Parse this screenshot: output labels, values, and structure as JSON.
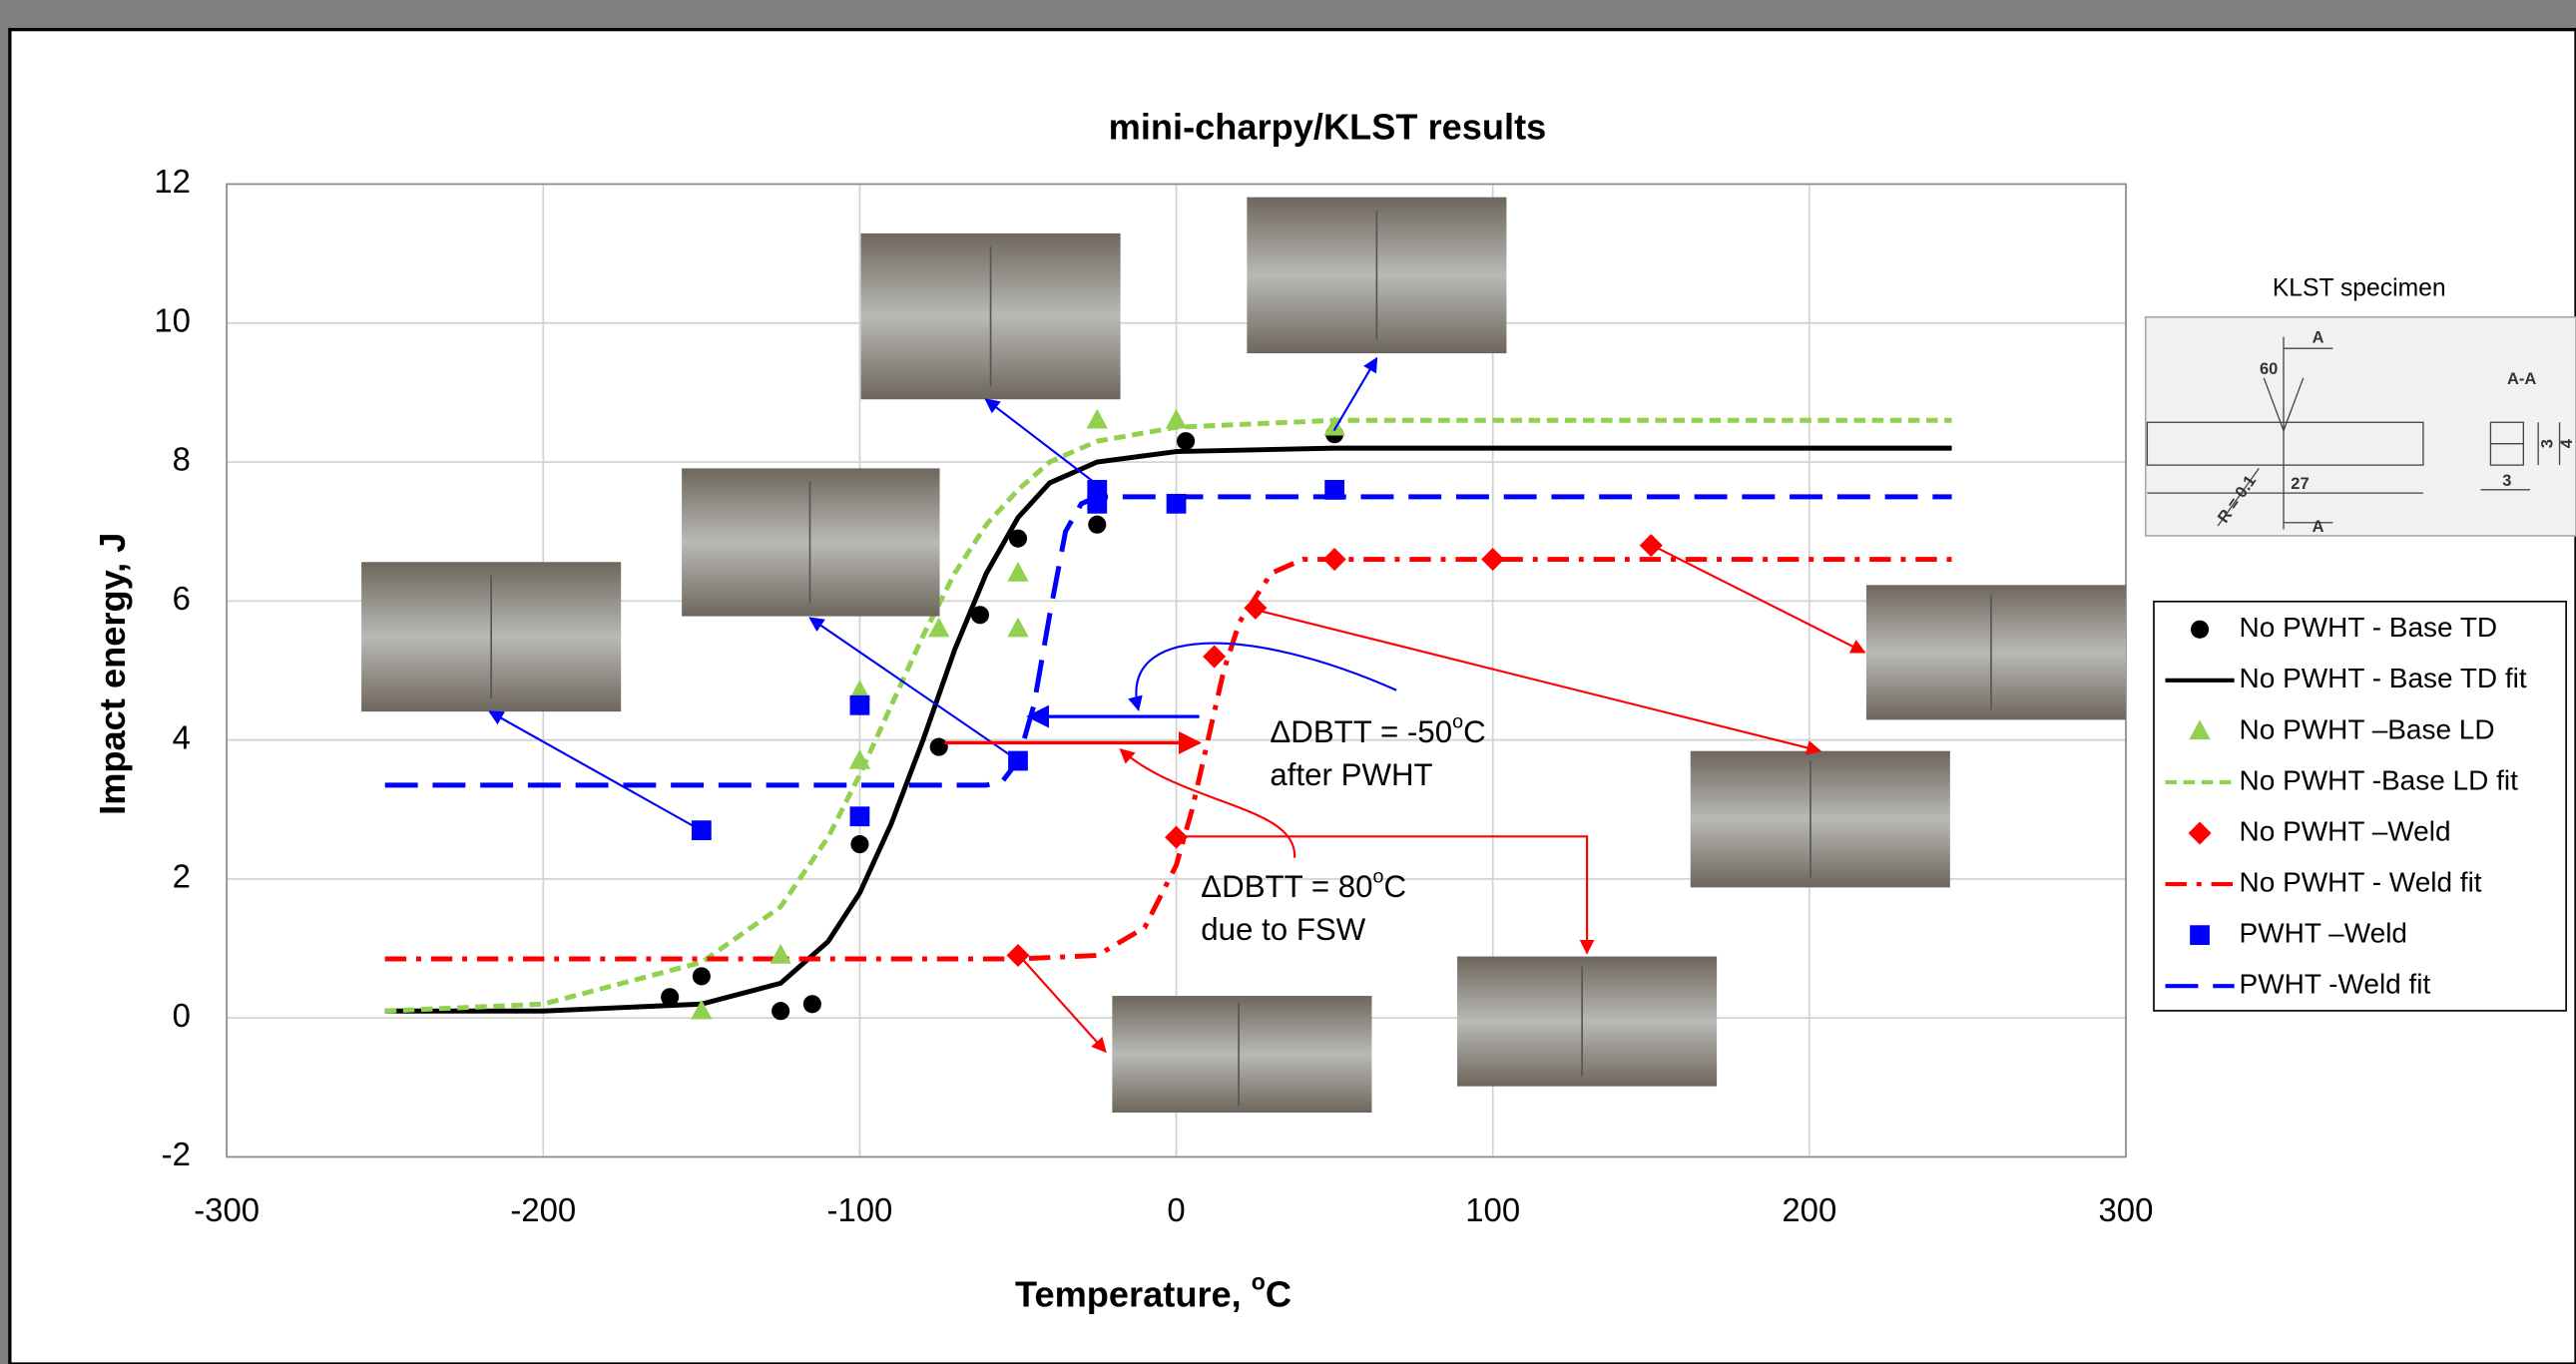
{
  "chart_data": {
    "type": "scatter",
    "title": "mini-charpy/KLST results",
    "xlabel": [
      "Temperature, ",
      "o",
      "C"
    ],
    "ylabel": "Impact energy, J",
    "xlim": [
      -300,
      300
    ],
    "xticks": [
      -300,
      -200,
      -100,
      0,
      100,
      200,
      300
    ],
    "ylim": [
      -2,
      12
    ],
    "yticks": [
      -2,
      0,
      2,
      4,
      6,
      8,
      10,
      12
    ],
    "grid": true,
    "legend": "right",
    "series": [
      {
        "name": "No PWHT - Base TD",
        "type": "scatter",
        "marker": "circle",
        "color": "#000000",
        "x": [
          -160,
          -150,
          -125,
          -115,
          -100,
          -75,
          -62,
          -50,
          -25,
          3,
          50
        ],
        "values": [
          0.3,
          0.6,
          0.1,
          0.2,
          2.5,
          3.9,
          5.8,
          6.9,
          7.1,
          8.3,
          8.4
        ]
      },
      {
        "name": "No PWHT - Base TD fit",
        "type": "line",
        "dash": "solid",
        "color": "#000000",
        "x": [
          -250,
          -200,
          -150,
          -125,
          -110,
          -100,
          -90,
          -80,
          -70,
          -60,
          -50,
          -40,
          -25,
          0,
          50,
          245
        ],
        "values": [
          0.1,
          0.1,
          0.2,
          0.5,
          1.1,
          1.8,
          2.8,
          4.0,
          5.3,
          6.4,
          7.2,
          7.7,
          8.0,
          8.15,
          8.2,
          8.2
        ]
      },
      {
        "name": "No PWHT –Base LD",
        "type": "scatter",
        "marker": "triangle",
        "color": "#92d050",
        "x": [
          -150,
          -125,
          -100,
          -100,
          -75,
          -50,
          -50,
          -25,
          0,
          50
        ],
        "values": [
          0.1,
          0.9,
          3.7,
          4.7,
          5.6,
          5.6,
          6.4,
          8.6,
          8.6,
          8.5
        ]
      },
      {
        "name": "No PWHT -Base LD fit",
        "type": "line",
        "dash": "dash",
        "color": "#92d050",
        "x": [
          -250,
          -200,
          -150,
          -125,
          -110,
          -100,
          -90,
          -80,
          -70,
          -60,
          -50,
          -40,
          -25,
          0,
          50,
          245
        ],
        "values": [
          0.1,
          0.2,
          0.8,
          1.6,
          2.6,
          3.5,
          4.5,
          5.5,
          6.4,
          7.1,
          7.6,
          8.0,
          8.3,
          8.5,
          8.6,
          8.6
        ]
      },
      {
        "name": "No PWHT –Weld",
        "type": "scatter",
        "marker": "diamond",
        "color": "#ff0000",
        "x": [
          -50,
          0,
          12,
          25,
          50,
          100,
          150
        ],
        "values": [
          0.9,
          2.6,
          5.2,
          5.9,
          6.6,
          6.6,
          6.8
        ]
      },
      {
        "name": "No PWHT - Weld fit",
        "type": "line",
        "dash": "dashdot",
        "color": "#ff0000",
        "x": [
          -250,
          -50,
          -25,
          -10,
          0,
          5,
          10,
          15,
          20,
          30,
          40,
          245
        ],
        "values": [
          0.85,
          0.85,
          0.9,
          1.3,
          2.2,
          3.0,
          4.0,
          5.0,
          5.7,
          6.4,
          6.6,
          6.6
        ]
      },
      {
        "name": "PWHT –Weld",
        "type": "scatter",
        "marker": "square",
        "color": "#0000ff",
        "x": [
          -150,
          -100,
          -100,
          -50,
          -25,
          -25,
          0,
          50
        ],
        "values": [
          2.7,
          2.9,
          4.5,
          3.7,
          7.4,
          7.6,
          7.4,
          7.6
        ]
      },
      {
        "name": "PWHT -Weld fit",
        "type": "line",
        "dash": "longdash",
        "color": "#0000ff",
        "x": [
          -250,
          -60,
          -55,
          -50,
          -45,
          -40,
          -35,
          -30,
          -25,
          245
        ],
        "values": [
          3.35,
          3.35,
          3.4,
          3.7,
          4.5,
          5.8,
          7.0,
          7.4,
          7.5,
          7.5
        ]
      }
    ],
    "annotations": [
      {
        "lines": [
          [
            "ΔDBTT = -50",
            "o",
            "C"
          ],
          [
            "after PWHT"
          ]
        ]
      },
      {
        "lines": [
          [
            "ΔDBTT = 80",
            "o",
            "C"
          ],
          [
            "due to FSW"
          ]
        ]
      }
    ]
  },
  "inset": {
    "title": "KLST specimen",
    "labels": [
      "A",
      "60",
      "A-A",
      "27",
      "R = 0.1",
      "3",
      "4",
      "3",
      "A"
    ]
  }
}
